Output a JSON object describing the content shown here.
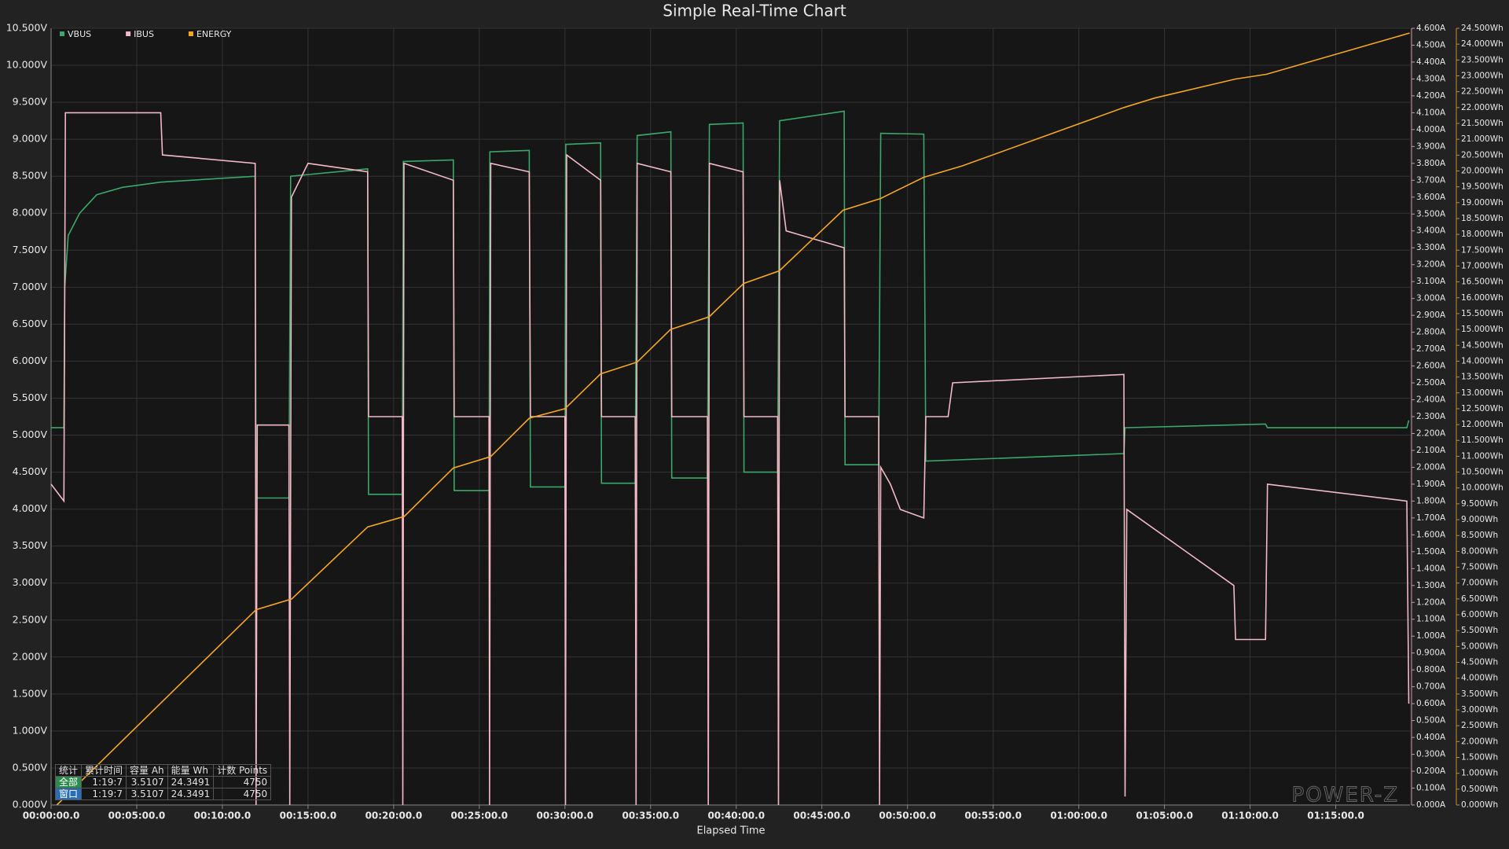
{
  "chart_data": {
    "type": "line",
    "title": "Simple Real-Time Chart",
    "xlabel": "Elapsed Time",
    "grid": true,
    "legend": "top-left",
    "xlim": [
      0,
      4760
    ],
    "xticks": [
      {
        "value": 0,
        "label": "00:00:00.0"
      },
      {
        "value": 300,
        "label": "00:05:00.0"
      },
      {
        "value": 600,
        "label": "00:10:00.0"
      },
      {
        "value": 900,
        "label": "00:15:00.0"
      },
      {
        "value": 1200,
        "label": "00:20:00.0"
      },
      {
        "value": 1500,
        "label": "00:25:00.0"
      },
      {
        "value": 1800,
        "label": "00:30:00.0"
      },
      {
        "value": 2100,
        "label": "00:35:00.0"
      },
      {
        "value": 2400,
        "label": "00:40:00.0"
      },
      {
        "value": 2700,
        "label": "00:45:00.0"
      },
      {
        "value": 3000,
        "label": "00:50:00.0"
      },
      {
        "value": 3300,
        "label": "00:55:00.0"
      },
      {
        "value": 3600,
        "label": "01:00:00.0"
      },
      {
        "value": 3900,
        "label": "01:05:00.0"
      },
      {
        "value": 4200,
        "label": "01:10:00.0"
      },
      {
        "value": 4500,
        "label": "01:15:00.0"
      }
    ],
    "ylim": [
      0,
      10.5
    ],
    "yticks": [
      {
        "value": 0,
        "label": "0.000V"
      },
      {
        "value": 0.5,
        "label": "0.500V"
      },
      {
        "value": 1,
        "label": "1.000V"
      },
      {
        "value": 1.5,
        "label": "1.500V"
      },
      {
        "value": 2,
        "label": "2.000V"
      },
      {
        "value": 2.5,
        "label": "2.500V"
      },
      {
        "value": 3,
        "label": "3.000V"
      },
      {
        "value": 3.5,
        "label": "3.500V"
      },
      {
        "value": 4,
        "label": "4.000V"
      },
      {
        "value": 4.5,
        "label": "4.500V"
      },
      {
        "value": 5,
        "label": "5.000V"
      },
      {
        "value": 5.5,
        "label": "5.500V"
      },
      {
        "value": 6,
        "label": "6.000V"
      },
      {
        "value": 6.5,
        "label": "6.500V"
      },
      {
        "value": 7,
        "label": "7.000V"
      },
      {
        "value": 7.5,
        "label": "7.500V"
      },
      {
        "value": 8,
        "label": "8.000V"
      },
      {
        "value": 8.5,
        "label": "8.500V"
      },
      {
        "value": 9,
        "label": "9.000V"
      },
      {
        "value": 9.5,
        "label": "9.500V"
      },
      {
        "value": 10,
        "label": "10.000V"
      },
      {
        "value": 10.5,
        "label": "10.500V"
      }
    ],
    "y2lim": [
      0,
      4.6
    ],
    "y2ticks": [
      {
        "value": 0,
        "label": "0.000A"
      },
      {
        "value": 0.1,
        "label": "0.100A"
      },
      {
        "value": 0.2,
        "label": "0.200A"
      },
      {
        "value": 0.3,
        "label": "0.300A"
      },
      {
        "value": 0.4,
        "label": "0.400A"
      },
      {
        "value": 0.5,
        "label": "0.500A"
      },
      {
        "value": 0.6,
        "label": "0.600A"
      },
      {
        "value": 0.7,
        "label": "0.700A"
      },
      {
        "value": 0.8,
        "label": "0.800A"
      },
      {
        "value": 0.9,
        "label": "0.900A"
      },
      {
        "value": 1,
        "label": "1.000A"
      },
      {
        "value": 1.1,
        "label": "1.100A"
      },
      {
        "value": 1.2,
        "label": "1.200A"
      },
      {
        "value": 1.3,
        "label": "1.300A"
      },
      {
        "value": 1.4,
        "label": "1.400A"
      },
      {
        "value": 1.5,
        "label": "1.500A"
      },
      {
        "value": 1.6,
        "label": "1.600A"
      },
      {
        "value": 1.7,
        "label": "1.700A"
      },
      {
        "value": 1.8,
        "label": "1.800A"
      },
      {
        "value": 1.9,
        "label": "1.900A"
      },
      {
        "value": 2,
        "label": "2.000A"
      },
      {
        "value": 2.1,
        "label": "2.100A"
      },
      {
        "value": 2.2,
        "label": "2.200A"
      },
      {
        "value": 2.3,
        "label": "2.300A"
      },
      {
        "value": 2.4,
        "label": "2.400A"
      },
      {
        "value": 2.5,
        "label": "2.500A"
      },
      {
        "value": 2.6,
        "label": "2.600A"
      },
      {
        "value": 2.7,
        "label": "2.700A"
      },
      {
        "value": 2.8,
        "label": "2.800A"
      },
      {
        "value": 2.9,
        "label": "2.900A"
      },
      {
        "value": 3,
        "label": "3.000A"
      },
      {
        "value": 3.1,
        "label": "3.100A"
      },
      {
        "value": 3.2,
        "label": "3.200A"
      },
      {
        "value": 3.3,
        "label": "3.300A"
      },
      {
        "value": 3.4,
        "label": "3.400A"
      },
      {
        "value": 3.5,
        "label": "3.500A"
      },
      {
        "value": 3.6,
        "label": "3.600A"
      },
      {
        "value": 3.7,
        "label": "3.700A"
      },
      {
        "value": 3.8,
        "label": "3.800A"
      },
      {
        "value": 3.9,
        "label": "3.900A"
      },
      {
        "value": 4,
        "label": "4.000A"
      },
      {
        "value": 4.1,
        "label": "4.100A"
      },
      {
        "value": 4.2,
        "label": "4.200A"
      },
      {
        "value": 4.3,
        "label": "4.300A"
      },
      {
        "value": 4.4,
        "label": "4.400A"
      },
      {
        "value": 4.5,
        "label": "4.500A"
      },
      {
        "value": 4.6,
        "label": "4.600A"
      }
    ],
    "y3lim": [
      0,
      24.5
    ],
    "y3ticks": [
      {
        "value": 0,
        "label": "0.000Wh"
      },
      {
        "value": 0.5,
        "label": "0.500Wh"
      },
      {
        "value": 1,
        "label": "1.000Wh"
      },
      {
        "value": 1.5,
        "label": "1.500Wh"
      },
      {
        "value": 2,
        "label": "2.000Wh"
      },
      {
        "value": 2.5,
        "label": "2.500Wh"
      },
      {
        "value": 3,
        "label": "3.000Wh"
      },
      {
        "value": 3.5,
        "label": "3.500Wh"
      },
      {
        "value": 4,
        "label": "4.000Wh"
      },
      {
        "value": 4.5,
        "label": "4.500Wh"
      },
      {
        "value": 5,
        "label": "5.000Wh"
      },
      {
        "value": 5.5,
        "label": "5.500Wh"
      },
      {
        "value": 6,
        "label": "6.000Wh"
      },
      {
        "value": 6.5,
        "label": "6.500Wh"
      },
      {
        "value": 7,
        "label": "7.000Wh"
      },
      {
        "value": 7.5,
        "label": "7.500Wh"
      },
      {
        "value": 8,
        "label": "8.000Wh"
      },
      {
        "value": 8.5,
        "label": "8.500Wh"
      },
      {
        "value": 9,
        "label": "9.000Wh"
      },
      {
        "value": 9.5,
        "label": "9.500Wh"
      },
      {
        "value": 10,
        "label": "10.000Wh"
      },
      {
        "value": 10.5,
        "label": "10.500Wh"
      },
      {
        "value": 11,
        "label": "11.000Wh"
      },
      {
        "value": 11.5,
        "label": "11.500Wh"
      },
      {
        "value": 12,
        "label": "12.000Wh"
      },
      {
        "value": 12.5,
        "label": "12.500Wh"
      },
      {
        "value": 13,
        "label": "13.000Wh"
      },
      {
        "value": 13.5,
        "label": "13.500Wh"
      },
      {
        "value": 14,
        "label": "14.000Wh"
      },
      {
        "value": 14.5,
        "label": "14.500Wh"
      },
      {
        "value": 15,
        "label": "15.000Wh"
      },
      {
        "value": 15.5,
        "label": "15.500Wh"
      },
      {
        "value": 16,
        "label": "16.000Wh"
      },
      {
        "value": 16.5,
        "label": "16.500Wh"
      },
      {
        "value": 17,
        "label": "17.000Wh"
      },
      {
        "value": 17.5,
        "label": "17.500Wh"
      },
      {
        "value": 18,
        "label": "18.000Wh"
      },
      {
        "value": 18.5,
        "label": "18.500Wh"
      },
      {
        "value": 19,
        "label": "19.000Wh"
      },
      {
        "value": 19.5,
        "label": "19.500Wh"
      },
      {
        "value": 20,
        "label": "20.000Wh"
      },
      {
        "value": 20.5,
        "label": "20.500Wh"
      },
      {
        "value": 21,
        "label": "21.000Wh"
      },
      {
        "value": 21.5,
        "label": "21.500Wh"
      },
      {
        "value": 22,
        "label": "22.000Wh"
      },
      {
        "value": 22.5,
        "label": "22.500Wh"
      },
      {
        "value": 23,
        "label": "23.000Wh"
      },
      {
        "value": 23.5,
        "label": "23.500Wh"
      },
      {
        "value": 24,
        "label": "24.000Wh"
      },
      {
        "value": 24.5,
        "label": "24.500Wh"
      }
    ],
    "series": [
      {
        "name": "VBUS",
        "color": "#3aa86a",
        "axis": "y",
        "x": [
          0,
          45,
          48,
          60,
          100,
          160,
          250,
          384,
          715,
          718,
          833,
          839,
          1109,
          1112,
          1230,
          1234,
          1409,
          1412,
          1534,
          1537,
          1675,
          1679,
          1800,
          1803,
          1925,
          1928,
          2046,
          2053,
          2171,
          2174,
          2299,
          2306,
          2424,
          2427,
          2545,
          2552,
          2778,
          2781,
          2899,
          2906,
          3057,
          3064,
          3758,
          3762,
          4254,
          4261,
          4749,
          4756
        ],
        "values": [
          5.1,
          5.1,
          7.0,
          7.7,
          8.0,
          8.25,
          8.35,
          8.42,
          8.5,
          4.15,
          4.15,
          8.5,
          8.6,
          4.2,
          4.2,
          8.7,
          8.72,
          4.25,
          4.25,
          8.83,
          8.85,
          4.3,
          4.3,
          8.93,
          8.95,
          4.35,
          4.35,
          9.05,
          9.1,
          4.42,
          4.42,
          9.2,
          9.22,
          4.5,
          4.5,
          9.25,
          9.38,
          4.6,
          4.6,
          9.08,
          9.07,
          4.65,
          4.75,
          5.1,
          5.15,
          5.1,
          5.1,
          5.2
        ]
      },
      {
        "name": "IBUS",
        "color": "#f2b8c6",
        "axis": "y2",
        "x": [
          0,
          45,
          50,
          384,
          390,
          715,
          718,
          722,
          833,
          836,
          842,
          900,
          1109,
          1112,
          1230,
          1232,
          1236,
          1409,
          1412,
          1534,
          1536,
          1540,
          1675,
          1679,
          1800,
          1802,
          1806,
          1925,
          1928,
          2046,
          2049,
          2053,
          2171,
          2174,
          2299,
          2302,
          2306,
          2424,
          2427,
          2545,
          2548,
          2552,
          2575,
          2778,
          2781,
          2899,
          2902,
          2906,
          2940,
          2975,
          3057,
          3064,
          3142,
          3158,
          3758,
          3762,
          3768,
          4143,
          4149,
          4254,
          4261,
          4749,
          4756
        ],
        "values": [
          1.9,
          1.8,
          4.1,
          4.1,
          3.85,
          3.8,
          0,
          2.25,
          2.25,
          0,
          3.6,
          3.8,
          3.75,
          2.3,
          2.3,
          0,
          3.8,
          3.7,
          2.3,
          2.3,
          0,
          3.8,
          3.75,
          2.3,
          2.3,
          0,
          3.85,
          3.7,
          2.3,
          2.3,
          0,
          3.8,
          3.75,
          2.3,
          2.3,
          0,
          3.8,
          3.75,
          2.3,
          2.3,
          0,
          3.7,
          3.4,
          3.3,
          2.3,
          2.3,
          0,
          2.0,
          1.9,
          1.75,
          1.7,
          2.3,
          2.3,
          2.5,
          2.55,
          0.05,
          1.75,
          1.3,
          0.98,
          0.98,
          1.9,
          1.8,
          0.6
        ]
      },
      {
        "name": "ENERGY",
        "color": "#f5a623",
        "axis": "y3",
        "x": [
          20,
          718,
          843,
          1109,
          1237,
          1409,
          1540,
          1675,
          1800,
          1925,
          2053,
          2170,
          2305,
          2426,
          2551,
          2774,
          2905,
          3057,
          3192,
          3758,
          3866,
          4149,
          4257,
          4759
        ],
        "values": [
          0,
          6.16,
          6.5,
          8.77,
          9.1,
          10.63,
          10.99,
          12.2,
          12.5,
          13.6,
          13.97,
          15.0,
          15.4,
          16.45,
          16.85,
          18.76,
          19.13,
          19.8,
          20.16,
          22.0,
          22.3,
          22.9,
          23.05,
          24.35
        ]
      }
    ],
    "stats_table": {
      "header": [
        "统计",
        "累计时间",
        "容量 Ah",
        "能量 Wh",
        "计数 Points"
      ],
      "rows": [
        [
          "全部",
          "1:19:7",
          3.5107,
          24.3491,
          4750
        ],
        [
          "窗口",
          "1:19:7",
          3.5107,
          24.3491,
          4750
        ]
      ]
    },
    "watermark": "POWER-Z"
  }
}
